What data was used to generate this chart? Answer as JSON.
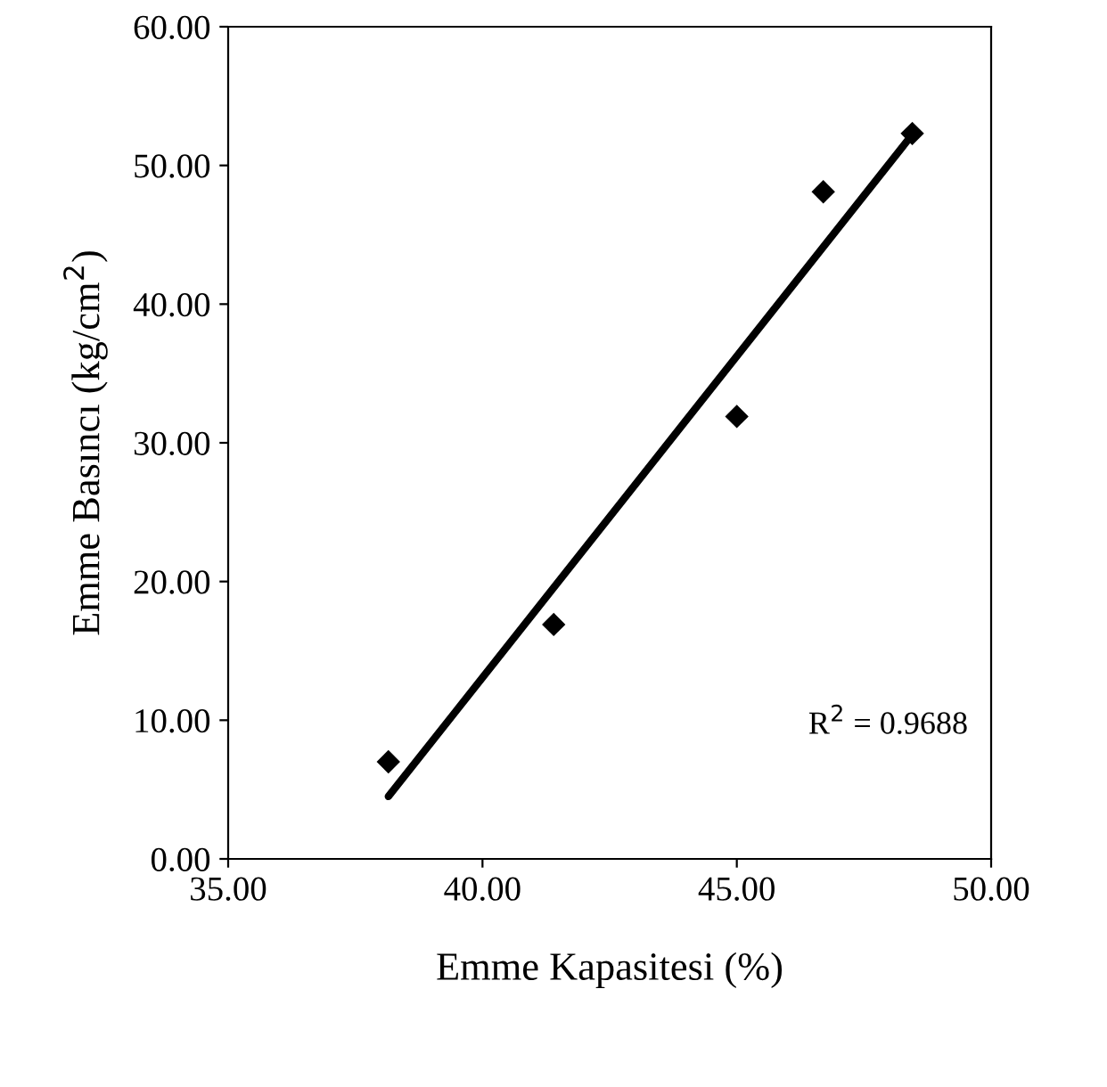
{
  "chart_data": {
    "type": "scatter",
    "xlabel": "Emme Kapasitesi (%)",
    "ylabel": "Emme Basıncı (kg/cm$^{2}$)",
    "x": [
      38.15,
      41.4,
      45.0,
      46.7,
      48.45
    ],
    "series": [
      {
        "color": "#000000",
        "marker": "diamond",
        "values": [
          7.0,
          16.9,
          31.9,
          48.1,
          52.3
        ]
      },
      {
        "type": "line",
        "color": "#000000",
        "marker": "none",
        "x": [
          38.15,
          48.4
        ],
        "values": [
          4.5,
          52.0
        ]
      }
    ],
    "annotations": [
      "R$^{2}$ = 0.9688"
    ],
    "xlim": [
      35,
      50
    ],
    "xticks": [
      {
        "value": 35,
        "label": "35.00"
      },
      {
        "value": 40,
        "label": "40.00"
      },
      {
        "value": 45,
        "label": "45.00"
      },
      {
        "value": 50,
        "label": "50.00"
      }
    ],
    "ylim": [
      0,
      60
    ],
    "yticks": [
      {
        "value": 0,
        "label": "0.00"
      },
      {
        "value": 10,
        "label": "10.00"
      },
      {
        "value": 20,
        "label": "20.00"
      },
      {
        "value": 30,
        "label": "30.00"
      },
      {
        "value": 40,
        "label": "40.00"
      },
      {
        "value": 50,
        "label": "50.00"
      },
      {
        "value": 60,
        "label": "60.00"
      }
    ],
    "grid": false
  }
}
